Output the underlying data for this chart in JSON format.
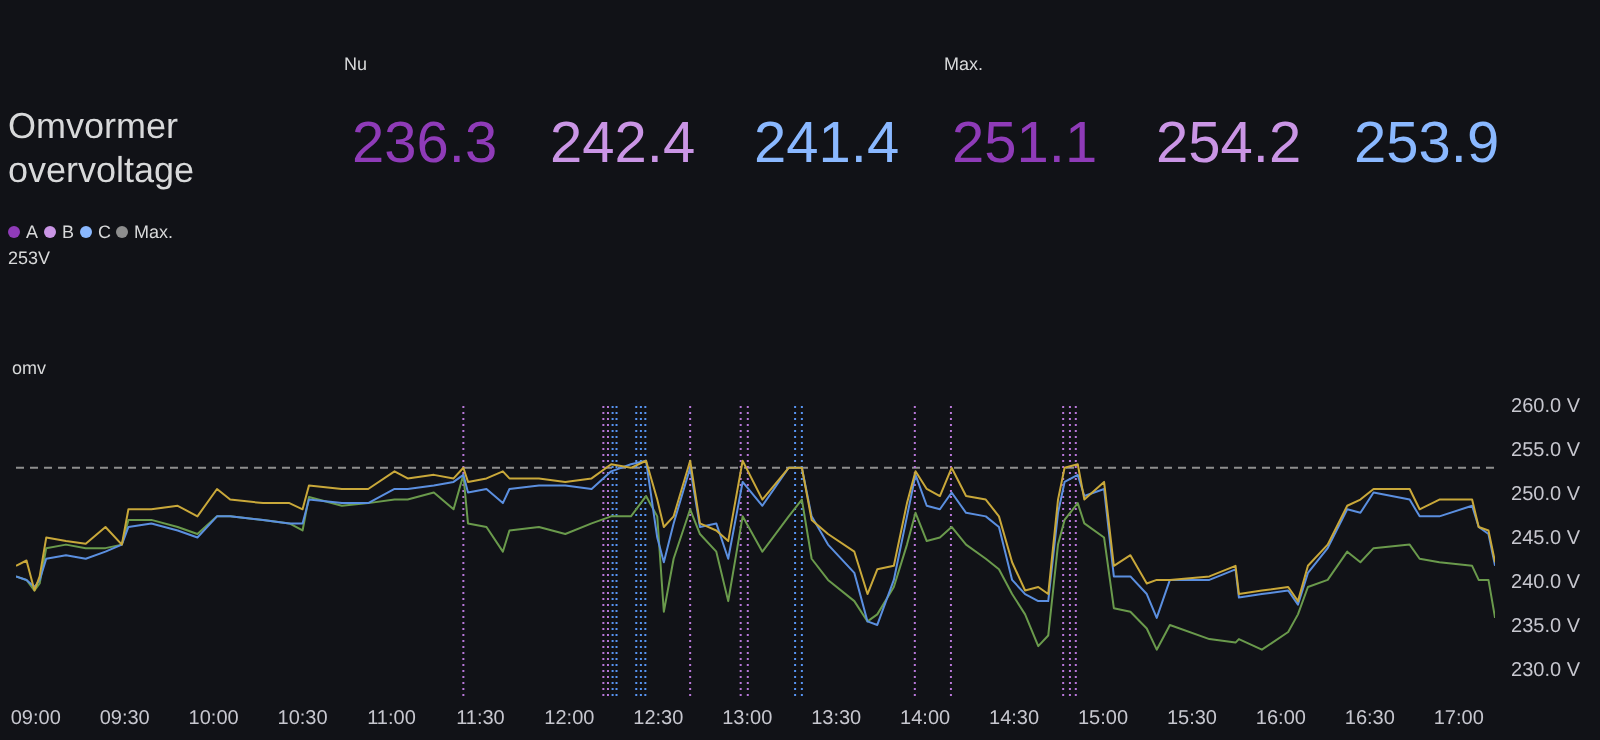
{
  "chart_data": {
    "type": "line",
    "title": "Omvormer overvoltage",
    "ylabel": "omv",
    "annotations": [
      "Nu",
      "236.3",
      "242.4",
      "241.4",
      "Max.",
      "251.1",
      "254.2",
      "253.9",
      "A",
      "B",
      "C",
      "Max.",
      "253V"
    ],
    "x": [
      8.889,
      8.948,
      8.993,
      9.022,
      9.059,
      9.17,
      9.281,
      9.392,
      9.484,
      9.521,
      9.65,
      9.798,
      9.909,
      10.019,
      10.093,
      10.278,
      10.426,
      10.5,
      10.536,
      10.721,
      10.869,
      11.017,
      11.091,
      11.238,
      11.349,
      11.404,
      11.43,
      11.534,
      11.626,
      11.663,
      11.829,
      11.977,
      12.125,
      12.235,
      12.346,
      12.431,
      12.494,
      12.531,
      12.586,
      12.679,
      12.734,
      12.826,
      12.893,
      12.974,
      13.085,
      13.233,
      13.307,
      13.362,
      13.454,
      13.602,
      13.676,
      13.731,
      13.824,
      13.898,
      13.946,
      14.009,
      14.083,
      14.149,
      14.23,
      14.341,
      14.415,
      14.489,
      14.562,
      14.636,
      14.692,
      14.747,
      14.784,
      14.858,
      14.895,
      15.006,
      15.061,
      15.154,
      15.246,
      15.302,
      15.376,
      15.598,
      15.745,
      15.764,
      15.893,
      16.041,
      16.096,
      16.152,
      16.263,
      16.373,
      16.447,
      16.521,
      16.724,
      16.78,
      16.891,
      17.075,
      17.112,
      17.167,
      17.204
    ],
    "series": [
      {
        "color": "#c9a83a",
        "values": [
          241.9,
          242.5,
          239.1,
          240.7,
          245.1,
          244.7,
          244.4,
          246.3,
          244.3,
          248.3,
          248.3,
          248.7,
          247.5,
          250.6,
          249.4,
          249.0,
          249.0,
          248.3,
          251.0,
          250.6,
          250.6,
          252.6,
          251.8,
          252.2,
          251.8,
          253.0,
          251.4,
          251.8,
          252.6,
          251.8,
          251.8,
          251.4,
          251.8,
          253.4,
          253.0,
          253.8,
          249.4,
          246.3,
          247.5,
          253.8,
          246.7,
          245.9,
          244.7,
          253.8,
          249.4,
          253.0,
          253.0,
          247.1,
          245.5,
          243.5,
          238.7,
          241.5,
          241.9,
          249.0,
          252.6,
          250.6,
          249.8,
          253.0,
          249.8,
          249.4,
          247.5,
          242.3,
          239.1,
          239.5,
          238.7,
          249.4,
          253.0,
          253.4,
          249.4,
          251.4,
          241.9,
          243.1,
          239.9,
          240.3,
          240.3,
          240.7,
          241.9,
          238.7,
          239.1,
          239.5,
          237.9,
          241.9,
          244.3,
          248.7,
          249.4,
          250.6,
          250.6,
          248.3,
          249.4,
          249.4,
          246.3,
          245.9,
          242.3
        ]
      },
      {
        "color": "#5b8fe0",
        "values": [
          240.7,
          240.3,
          239.5,
          240.3,
          242.7,
          243.1,
          242.7,
          243.5,
          244.3,
          246.3,
          246.7,
          245.9,
          245.1,
          247.5,
          247.5,
          247.1,
          246.7,
          246.7,
          249.4,
          249.0,
          249.0,
          250.6,
          250.6,
          251.0,
          251.4,
          252.2,
          250.2,
          250.6,
          249.0,
          250.6,
          251.0,
          251.0,
          250.6,
          252.6,
          253.4,
          253.8,
          245.1,
          242.3,
          246.7,
          253.0,
          246.3,
          246.7,
          242.7,
          251.4,
          248.7,
          253.0,
          253.0,
          247.5,
          244.3,
          241.1,
          235.6,
          235.2,
          240.3,
          247.5,
          252.2,
          248.7,
          248.3,
          250.2,
          247.9,
          247.5,
          246.3,
          240.3,
          238.7,
          237.9,
          237.9,
          247.9,
          251.4,
          252.2,
          249.8,
          250.6,
          240.7,
          240.7,
          238.7,
          236.0,
          240.3,
          240.3,
          241.5,
          238.3,
          238.7,
          239.1,
          237.5,
          241.1,
          243.9,
          248.3,
          247.9,
          250.2,
          249.4,
          247.5,
          247.5,
          248.7,
          246.3,
          245.5,
          241.9
        ]
      },
      {
        "color": "#6a9a4c",
        "values": [
          240.7,
          240.3,
          239.1,
          239.9,
          243.9,
          244.3,
          243.9,
          243.9,
          244.3,
          247.1,
          247.1,
          246.3,
          245.5,
          247.5,
          247.5,
          247.1,
          246.7,
          245.9,
          249.7,
          248.7,
          249.0,
          249.4,
          249.4,
          250.2,
          248.3,
          252.2,
          246.7,
          246.3,
          243.5,
          245.9,
          246.3,
          245.5,
          246.7,
          247.5,
          247.5,
          249.8,
          247.5,
          236.7,
          242.7,
          248.3,
          245.5,
          243.5,
          237.9,
          247.5,
          243.5,
          247.5,
          249.4,
          242.7,
          240.3,
          237.9,
          235.6,
          236.4,
          239.5,
          244.3,
          247.9,
          244.7,
          245.1,
          246.3,
          244.3,
          242.7,
          241.5,
          238.7,
          236.4,
          232.8,
          234.0,
          244.3,
          247.1,
          249.0,
          246.7,
          245.1,
          237.1,
          236.7,
          234.8,
          232.4,
          235.2,
          233.6,
          233.2,
          233.6,
          232.4,
          234.4,
          236.4,
          239.5,
          240.3,
          243.5,
          242.3,
          243.9,
          244.3,
          242.7,
          242.3,
          241.9,
          240.3,
          240.3,
          236.0
        ]
      }
    ],
    "xlim": [
      8.889,
      17.204
    ],
    "xticks": [
      {
        "value": 9,
        "label": "09:00"
      },
      {
        "value": 9.5,
        "label": "09:30"
      },
      {
        "value": 10,
        "label": "10:00"
      },
      {
        "value": 10.5,
        "label": "10:30"
      },
      {
        "value": 11,
        "label": "11:00"
      },
      {
        "value": 11.5,
        "label": "11:30"
      },
      {
        "value": 12,
        "label": "12:00"
      },
      {
        "value": 12.5,
        "label": "12:30"
      },
      {
        "value": 13,
        "label": "13:00"
      },
      {
        "value": 13.5,
        "label": "13:30"
      },
      {
        "value": 14,
        "label": "14:00"
      },
      {
        "value": 14.5,
        "label": "14:30"
      },
      {
        "value": 15,
        "label": "15:00"
      },
      {
        "value": 15.5,
        "label": "15:30"
      },
      {
        "value": 16,
        "label": "16:00"
      },
      {
        "value": 16.5,
        "label": "16:30"
      },
      {
        "value": 17,
        "label": "17:00"
      }
    ],
    "ylim": [
      226.7,
      260
    ],
    "yticks": [
      {
        "value": 230,
        "label": "230.0 V"
      },
      {
        "value": 235,
        "label": "235.0 V"
      },
      {
        "value": 240,
        "label": "240.0 V"
      },
      {
        "value": 245,
        "label": "245.0 V"
      },
      {
        "value": 250,
        "label": "250.0 V"
      },
      {
        "value": 255,
        "label": "255.0 V"
      },
      {
        "value": 260,
        "label": "260.0 V"
      }
    ],
    "ref_lines": [
      {
        "axis": "y",
        "value": 253,
        "color": "#8e8e8e",
        "line_style": "dashed"
      },
      {
        "axis": "x",
        "value": 11.404,
        "color": "#b877d9",
        "line_style": "dotted"
      },
      {
        "axis": "x",
        "value": 12.191,
        "color": "#b877d9",
        "line_style": "dotted"
      },
      {
        "axis": "x",
        "value": 12.217,
        "color": "#b877d9",
        "line_style": "dotted"
      },
      {
        "axis": "x",
        "value": 12.243,
        "color": "#5794f2",
        "line_style": "dotted"
      },
      {
        "axis": "x",
        "value": 12.265,
        "color": "#5794f2",
        "line_style": "dotted"
      },
      {
        "axis": "x",
        "value": 12.376,
        "color": "#5794f2",
        "line_style": "dotted"
      },
      {
        "axis": "x",
        "value": 12.402,
        "color": "#5794f2",
        "line_style": "dotted"
      },
      {
        "axis": "x",
        "value": 12.427,
        "color": "#5794f2",
        "line_style": "dotted"
      },
      {
        "axis": "x",
        "value": 12.679,
        "color": "#b877d9",
        "line_style": "dotted"
      },
      {
        "axis": "x",
        "value": 12.963,
        "color": "#b877d9",
        "line_style": "dotted"
      },
      {
        "axis": "x",
        "value": 13.003,
        "color": "#b877d9",
        "line_style": "dotted"
      },
      {
        "axis": "x",
        "value": 13.269,
        "color": "#5794f2",
        "line_style": "dotted"
      },
      {
        "axis": "x",
        "value": 13.307,
        "color": "#5794f2",
        "line_style": "dotted"
      },
      {
        "axis": "x",
        "value": 13.942,
        "color": "#b877d9",
        "line_style": "dotted"
      },
      {
        "axis": "x",
        "value": 14.145,
        "color": "#b877d9",
        "line_style": "dotted"
      },
      {
        "axis": "x",
        "value": 14.776,
        "color": "#b877d9",
        "line_style": "dotted"
      },
      {
        "axis": "x",
        "value": 14.814,
        "color": "#b877d9",
        "line_style": "dotted"
      },
      {
        "axis": "x",
        "value": 14.847,
        "color": "#b877d9",
        "line_style": "dotted"
      }
    ],
    "grid": false,
    "marker": "none",
    "line_style": "solid"
  }
}
